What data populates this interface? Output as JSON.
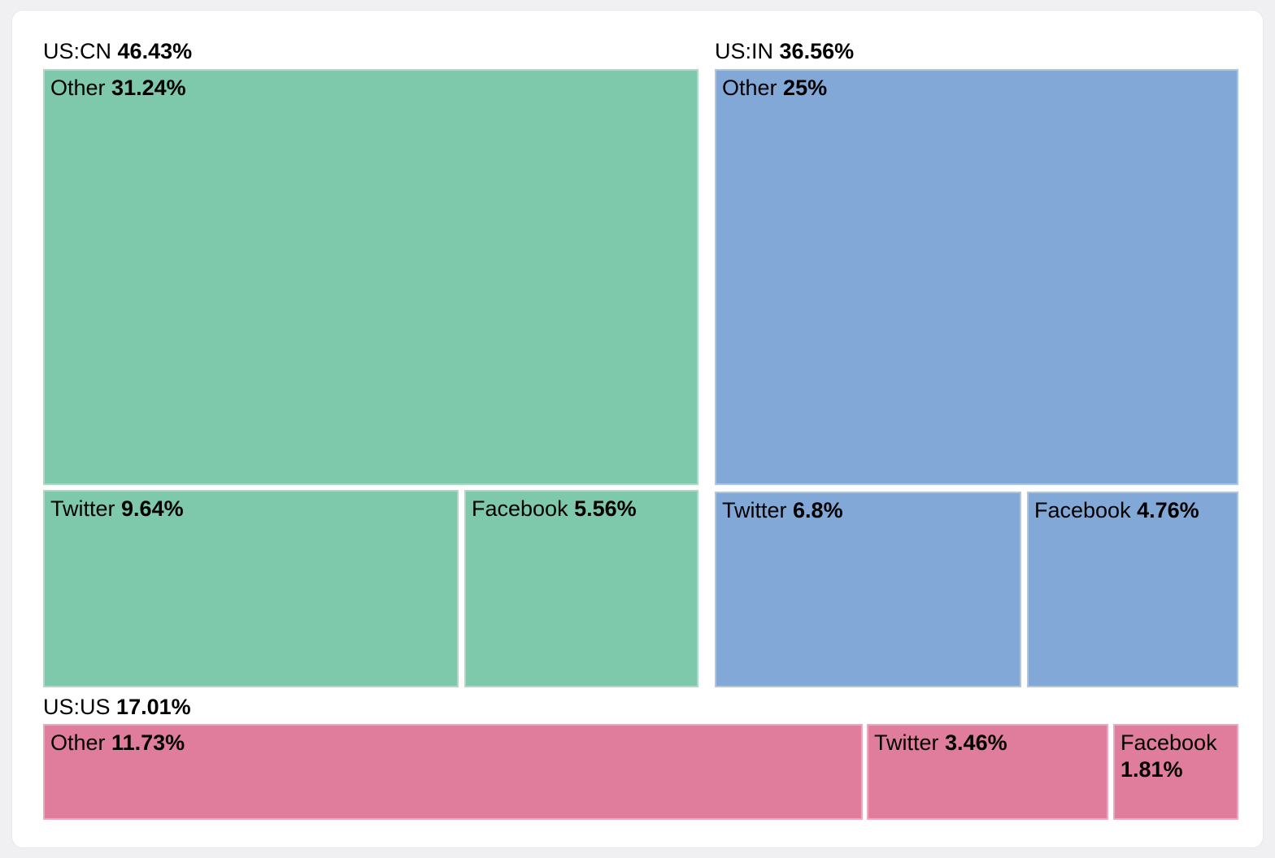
{
  "chart_data": {
    "type": "treemap",
    "title": "",
    "legend": "none",
    "value_format": "percent",
    "groups": [
      {
        "label": "US:CN",
        "pct": "46.43%",
        "value": 46.43,
        "color": "#7ec8ab",
        "children": [
          {
            "label": "Other",
            "pct": "31.24%",
            "value": 31.24
          },
          {
            "label": "Twitter",
            "pct": "9.64%",
            "value": 9.64
          },
          {
            "label": "Facebook",
            "pct": "5.56%",
            "value": 5.56
          }
        ]
      },
      {
        "label": "US:IN",
        "pct": "36.56%",
        "value": 36.56,
        "color": "#81a8d6",
        "children": [
          {
            "label": "Other",
            "pct": "25%",
            "value": 25.0
          },
          {
            "label": "Twitter",
            "pct": "6.8%",
            "value": 6.8
          },
          {
            "label": "Facebook",
            "pct": "4.76%",
            "value": 4.76
          }
        ]
      },
      {
        "label": "US:US",
        "pct": "17.01%",
        "value": 17.01,
        "color": "#e07d9d",
        "children": [
          {
            "label": "Other",
            "pct": "11.73%",
            "value": 11.73
          },
          {
            "label": "Twitter",
            "pct": "3.46%",
            "value": 3.46
          },
          {
            "label": "Facebook",
            "pct": "1.81%",
            "value": 1.81
          }
        ]
      }
    ]
  }
}
